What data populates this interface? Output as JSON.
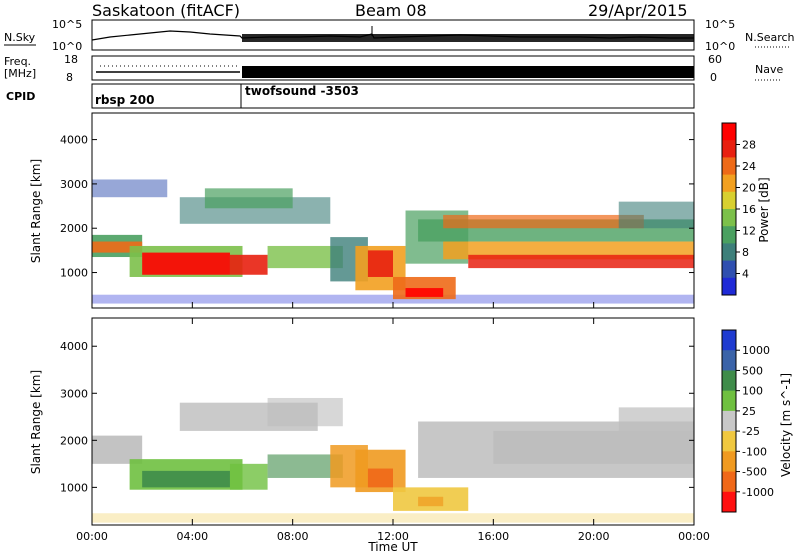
{
  "header": {
    "title": "Saskatoon (fitACF)",
    "beam": "Beam 08",
    "date": "29/Apr/2015"
  },
  "noise_panel": {
    "left_label": "N.Sky",
    "left_ticks": [
      "10^5",
      "10^0"
    ],
    "right_ticks": [
      "10^5",
      "10^0"
    ],
    "right_label": "N.Search"
  },
  "freq_panel": {
    "left_label_1": "Freq.",
    "left_label_2": "[MHz]",
    "left_ticks": [
      "18",
      "8"
    ],
    "right_ticks": [
      "60",
      "0"
    ],
    "right_label": "Nave"
  },
  "cpid_panel": {
    "label": "CPID",
    "modes": [
      {
        "name": "rbsp 200",
        "start_hour": 0
      },
      {
        "name": "twofsound -3503",
        "start_hour": 6
      }
    ]
  },
  "chart_data": [
    {
      "type": "heatmap",
      "panel": "power",
      "ylabel": "Slant Range [km]",
      "ylim": [
        200,
        4600
      ],
      "yticks": [
        "1000",
        "2000",
        "3000",
        "4000"
      ],
      "xlim": [
        0,
        24
      ],
      "colorbar_label": "Power [dB]",
      "colorbar_ticks": [
        "4",
        "8",
        "12",
        "16",
        "20",
        "24",
        "28"
      ],
      "colors": [
        "#1f2ad6",
        "#2f4fb0",
        "#3d7f7a",
        "#4aa060",
        "#7cc04a",
        "#d8d030",
        "#f2a020",
        "#ee6a18",
        "#e82010",
        "#ff0000"
      ]
    },
    {
      "type": "heatmap",
      "panel": "velocity",
      "ylabel": "Slant Range [km]",
      "ylim": [
        200,
        4600
      ],
      "yticks": [
        "1000",
        "2000",
        "3000",
        "4000"
      ],
      "xlim": [
        0,
        24
      ],
      "xticks": [
        "00:00",
        "04:00",
        "08:00",
        "12:00",
        "16:00",
        "20:00",
        "00:00"
      ],
      "xlabel": "Time UT",
      "colorbar_label": "Velocity [m s^-1]",
      "colorbar_ticks": [
        "1000",
        "500",
        "100",
        "25",
        "-25",
        "-100",
        "-500",
        "-1000"
      ],
      "colors": [
        "#1f3bd0",
        "#3a63a8",
        "#3f8c4a",
        "#6fc040",
        "#c8c8c8",
        "#f0c840",
        "#f09a20",
        "#f06818",
        "#ff1010"
      ]
    }
  ],
  "colors": {
    "ground_scatter": "#bdbdbd"
  }
}
